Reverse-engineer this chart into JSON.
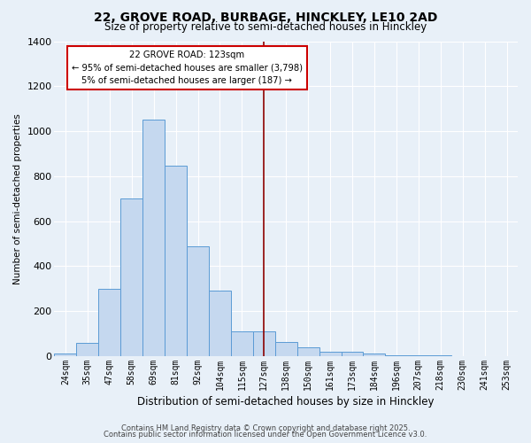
{
  "title_line1": "22, GROVE ROAD, BURBAGE, HINCKLEY, LE10 2AD",
  "title_line2": "Size of property relative to semi-detached houses in Hinckley",
  "xlabel": "Distribution of semi-detached houses by size in Hinckley",
  "ylabel": "Number of semi-detached properties",
  "categories": [
    "24sqm",
    "35sqm",
    "47sqm",
    "58sqm",
    "69sqm",
    "81sqm",
    "92sqm",
    "104sqm",
    "115sqm",
    "127sqm",
    "138sqm",
    "150sqm",
    "161sqm",
    "173sqm",
    "184sqm",
    "196sqm",
    "207sqm",
    "218sqm",
    "230sqm",
    "241sqm",
    "253sqm"
  ],
  "values": [
    10,
    60,
    300,
    700,
    1050,
    845,
    490,
    290,
    110,
    110,
    65,
    40,
    20,
    20,
    13,
    5,
    5,
    5,
    2,
    2,
    2
  ],
  "bar_color": "#c5d8ef",
  "bar_edge_color": "#5b9bd5",
  "bg_color": "#e8f0f8",
  "grid_color": "#ffffff",
  "vline_color": "#8b0000",
  "annotation_title": "22 GROVE ROAD: 123sqm",
  "annotation_line1": "← 95% of semi-detached houses are smaller (3,798)",
  "annotation_line2": "5% of semi-detached houses are larger (187) →",
  "annotation_box_color": "#ffffff",
  "annotation_box_edge": "#cc0000",
  "footer_line1": "Contains HM Land Registry data © Crown copyright and database right 2025.",
  "footer_line2": "Contains public sector information licensed under the Open Government Licence v3.0.",
  "ylim": [
    0,
    1400
  ],
  "yticks": [
    0,
    200,
    400,
    600,
    800,
    1000,
    1200,
    1400
  ],
  "vline_pos": 9.0
}
